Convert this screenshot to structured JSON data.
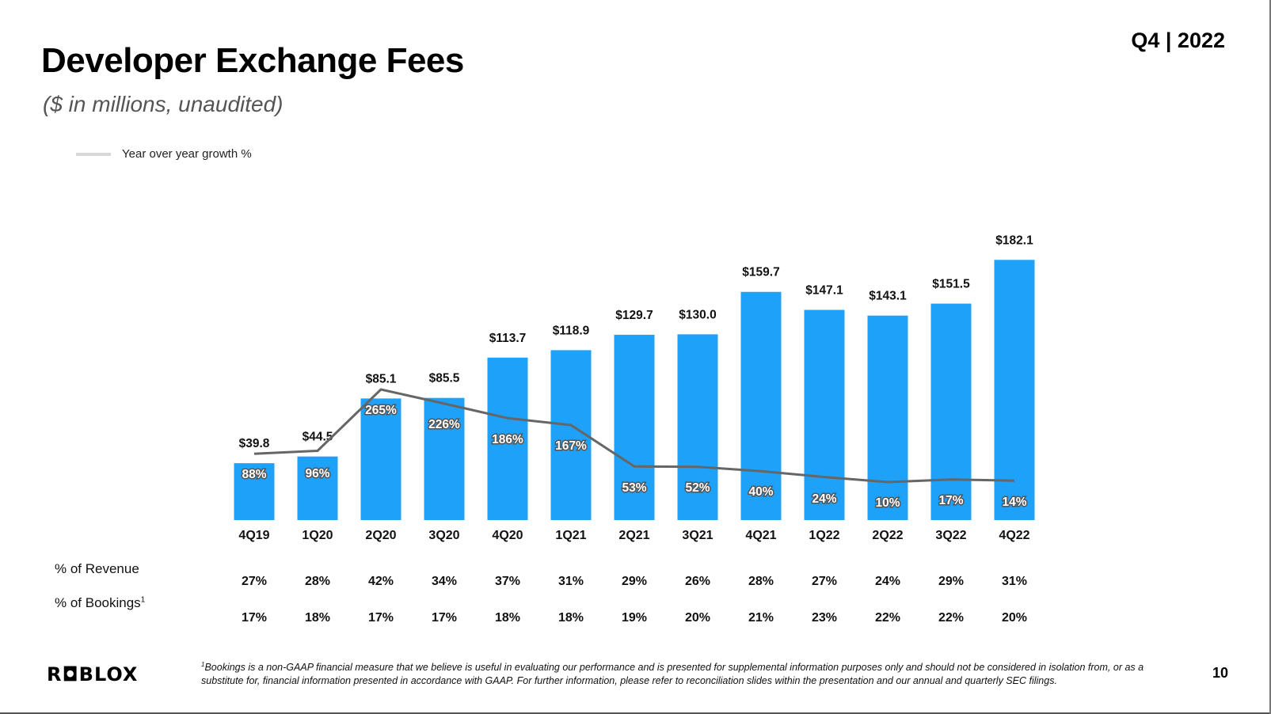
{
  "slide": {
    "title": "Developer Exchange Fees",
    "subtitle": "($ in millions, unaudited)",
    "period": "Q4 | 2022",
    "page_number": "10",
    "logo_text": "R◘BLOX"
  },
  "legend": {
    "label": "Year over year growth %"
  },
  "rows": {
    "revenue_label": "% of Revenue",
    "bookings_label": "% of Bookings",
    "bookings_sup": "1"
  },
  "footnote": {
    "marker": "1",
    "text": "Bookings is a non-GAAP financial measure that we believe is useful in evaluating our performance and is presented for supplemental information purposes only and should not be considered in isolation from, or as a substitute for, financial information presented in accordance with GAAP. For further information, please refer to reconciliation slides within the presentation and our annual and quarterly SEC filings."
  },
  "colors": {
    "bar": "#1ea1f8",
    "line": "#666666",
    "legend_swatch": "#d8d8d8"
  },
  "chart_data": {
    "type": "bar",
    "categories": [
      "4Q19",
      "1Q20",
      "2Q20",
      "3Q20",
      "4Q20",
      "1Q21",
      "2Q21",
      "3Q21",
      "4Q21",
      "1Q22",
      "2Q22",
      "3Q22",
      "4Q22"
    ],
    "series": [
      {
        "values": [
          39.8,
          44.5,
          85.1,
          85.5,
          113.7,
          118.9,
          129.7,
          130.0,
          159.7,
          147.1,
          143.1,
          151.5,
          182.1
        ]
      },
      {
        "name": "Year over year growth %",
        "type": "line",
        "values": [
          88,
          96,
          265,
          226,
          186,
          167,
          53,
          52,
          40,
          24,
          10,
          17,
          14
        ]
      }
    ],
    "value_labels": [
      "$39.8",
      "$44.5",
      "$85.1",
      "$85.5",
      "$113.7",
      "$118.9",
      "$129.7",
      "$130.0",
      "$159.7",
      "$147.1",
      "$143.1",
      "$151.5",
      "$182.1"
    ],
    "growth_labels": [
      "88%",
      "96%",
      "265%",
      "226%",
      "186%",
      "167%",
      "53%",
      "52%",
      "40%",
      "24%",
      "10%",
      "17%",
      "14%"
    ],
    "pct_of_revenue": [
      "27%",
      "28%",
      "42%",
      "34%",
      "37%",
      "31%",
      "29%",
      "26%",
      "28%",
      "27%",
      "24%",
      "29%",
      "31%"
    ],
    "pct_of_bookings": [
      "17%",
      "18%",
      "17%",
      "17%",
      "18%",
      "18%",
      "19%",
      "20%",
      "21%",
      "23%",
      "22%",
      "22%",
      "20%"
    ],
    "legend_position": "top-left",
    "grid": false
  }
}
